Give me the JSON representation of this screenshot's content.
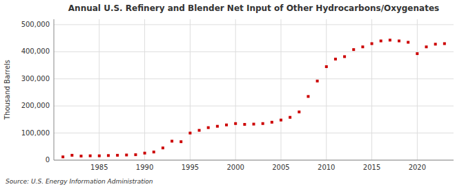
{
  "chart_data": {
    "type": "scatter",
    "title": "Annual U.S. Refinery and Blender Net Input of Other Hydrocarbons/Oxygenates",
    "y_label": "Thousand Barrels",
    "source": "Source: U.S. Energy Information Administration",
    "color": "#cc0000",
    "marker": "square",
    "grid": true,
    "x": [
      1981,
      1982,
      1983,
      1984,
      1985,
      1986,
      1987,
      1988,
      1989,
      1990,
      1991,
      1992,
      1993,
      1994,
      1995,
      1996,
      1997,
      1998,
      1999,
      2000,
      2001,
      2002,
      2003,
      2004,
      2005,
      2006,
      2007,
      2008,
      2009,
      2010,
      2011,
      2012,
      2013,
      2014,
      2015,
      2016,
      2017,
      2018,
      2019,
      2020,
      2021,
      2022,
      2023
    ],
    "values": [
      12000,
      18000,
      15000,
      16000,
      16000,
      17000,
      18000,
      19000,
      20000,
      26000,
      30000,
      45000,
      70000,
      68000,
      100000,
      110000,
      120000,
      125000,
      130000,
      135000,
      132000,
      133000,
      135000,
      140000,
      148000,
      158000,
      178000,
      235000,
      292000,
      345000,
      373000,
      382000,
      408000,
      418000,
      430000,
      440000,
      443000,
      440000,
      435000,
      393000,
      418000,
      428000,
      430000
    ],
    "xlim": [
      1980,
      2024
    ],
    "xticks": [
      1985,
      1990,
      1995,
      2000,
      2005,
      2010,
      2015,
      2020
    ],
    "ylim": [
      0,
      520000
    ],
    "yticks": [
      0,
      {
        "value": 100000,
        "label": "100,000"
      },
      {
        "value": 200000,
        "label": "200,000"
      },
      {
        "value": 300000,
        "label": "300,000"
      },
      {
        "value": 400000,
        "label": "400,000"
      },
      {
        "value": 500000,
        "label": "500,000"
      }
    ]
  }
}
